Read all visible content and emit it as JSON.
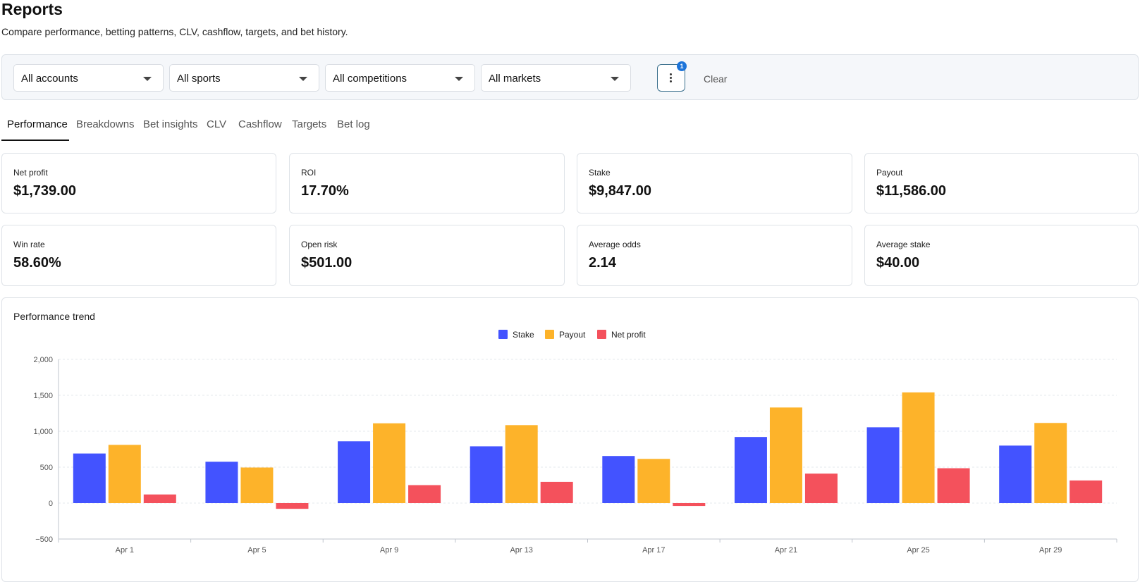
{
  "header": {
    "title": "Reports",
    "subtitle": "Compare performance, betting patterns, CLV, cashflow, targets, and bet history."
  },
  "filters": {
    "accounts": "All accounts",
    "sports": "All sports",
    "competitions": "All competitions",
    "markets": "All markets",
    "more_badge": "1",
    "clear_label": "Clear"
  },
  "tabs": [
    "Performance",
    "Breakdowns",
    "Bet insights",
    "CLV",
    "Cashflow",
    "Targets",
    "Bet log"
  ],
  "active_tab": "Performance",
  "kpis": [
    {
      "label": "Net profit",
      "value": "$1,739.00"
    },
    {
      "label": "ROI",
      "value": "17.70%"
    },
    {
      "label": "Stake",
      "value": "$9,847.00"
    },
    {
      "label": "Payout",
      "value": "$11,586.00"
    },
    {
      "label": "Win rate",
      "value": "58.60%"
    },
    {
      "label": "Open risk",
      "value": "$501.00"
    },
    {
      "label": "Average odds",
      "value": "2.14"
    },
    {
      "label": "Average stake",
      "value": "$40.00"
    }
  ],
  "chart_card": {
    "title": "Performance trend"
  },
  "chart_data": {
    "type": "bar",
    "title": "Performance trend",
    "categories": [
      "Apr 1",
      "Apr 5",
      "Apr 9",
      "Apr 13",
      "Apr 17",
      "Apr 21",
      "Apr 25",
      "Apr 29"
    ],
    "series": [
      {
        "name": "Stake",
        "color": "#4353ff",
        "values": [
          690,
          575,
          860,
          790,
          655,
          920,
          1055,
          800
        ]
      },
      {
        "name": "Payout",
        "color": "#fdb32a",
        "values": [
          810,
          495,
          1110,
          1085,
          615,
          1330,
          1540,
          1115
        ]
      },
      {
        "name": "Net profit",
        "color": "#f4515c",
        "values": [
          120,
          -80,
          250,
          295,
          -40,
          410,
          485,
          315
        ]
      }
    ],
    "ylim": [
      -500,
      2000
    ],
    "yticks": [
      "2,000",
      "1,500",
      "1,000",
      "500",
      "0",
      "−500"
    ],
    "ytick_values": [
      2000,
      1500,
      1000,
      500,
      0,
      -500
    ],
    "legend_position": "top-center",
    "grid": true
  }
}
